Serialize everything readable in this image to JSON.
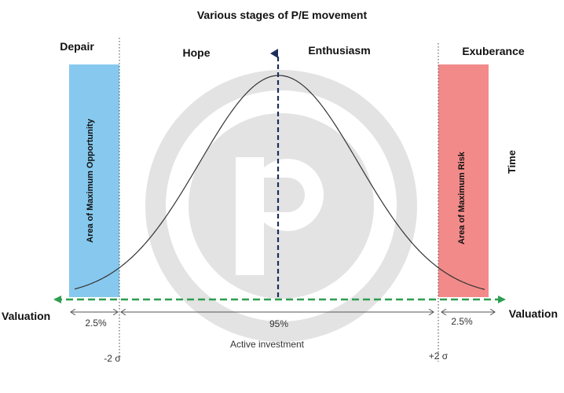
{
  "title": "Various stages of P/E movement",
  "stages": {
    "depair": "Depair",
    "hope": "Hope",
    "enthusiasm": "Enthusiasm",
    "exuberance": "Exuberance"
  },
  "zones": {
    "left_label": "Area of Maximum Opportunity",
    "right_label": "Area of Maximum Risk",
    "left_color": "#87C9EE",
    "right_color": "#F28A8A"
  },
  "axes": {
    "vertical_label": "Time",
    "left_valuation": "Valuation",
    "right_valuation": "Valuation",
    "arrow_color": "#2E9E4F",
    "peak_arrow_color": "#1C2E5A"
  },
  "intervals": {
    "left_pct": "2.5%",
    "center_pct": "95%",
    "right_pct": "2.5%",
    "center_caption": "Active investment"
  },
  "sigma": {
    "minus": "-2 σ",
    "plus": "+2 σ"
  },
  "watermark_color": "#E3E3E3"
}
